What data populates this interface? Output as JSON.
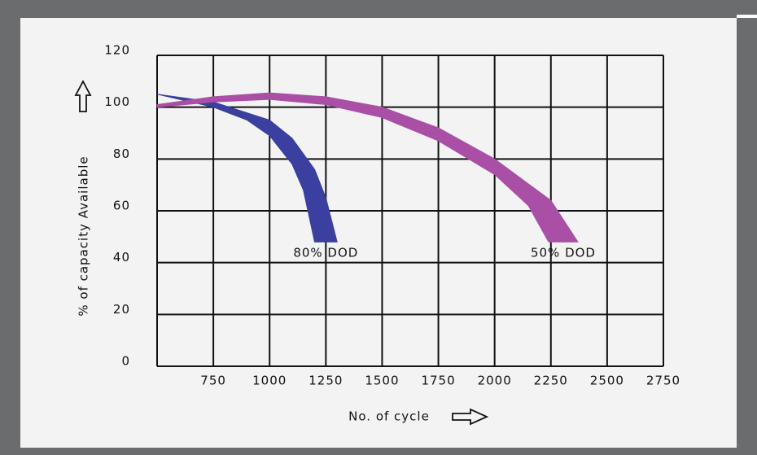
{
  "chart_data": {
    "type": "band",
    "x_label": "No. of cycle",
    "y_label": "% of capacity Available",
    "xlim": [
      500,
      2750
    ],
    "xticks": [
      750,
      1000,
      1250,
      1500,
      1750,
      2000,
      2250,
      2500,
      2750
    ],
    "ylim": [
      0,
      120
    ],
    "yticks": [
      0,
      20,
      40,
      60,
      80,
      100,
      120
    ],
    "grid": true,
    "series": [
      {
        "name": "80% DOD",
        "color": "#3a3fa0",
        "upper": {
          "x": [
            500,
            750,
            1000,
            1100,
            1200,
            1250,
            1300
          ],
          "values": [
            105,
            102,
            95,
            88,
            76,
            65,
            48
          ]
        },
        "lower": {
          "x": [
            500,
            750,
            900,
            1000,
            1100,
            1150,
            1200
          ],
          "values": [
            105,
            100,
            95,
            89,
            78,
            68,
            48
          ]
        }
      },
      {
        "name": "50% DOD",
        "color": "#a94fa6",
        "upper": {
          "x": [
            500,
            750,
            1000,
            1250,
            1500,
            1750,
            2000,
            2250,
            2370
          ],
          "values": [
            101,
            104,
            105.5,
            104,
            100,
            92,
            80,
            64,
            48
          ]
        },
        "lower": {
          "x": [
            500,
            750,
            1000,
            1250,
            1500,
            1750,
            2000,
            2150,
            2240
          ],
          "values": [
            100,
            102,
            103,
            101,
            96,
            87,
            74,
            62,
            48
          ]
        }
      }
    ]
  }
}
